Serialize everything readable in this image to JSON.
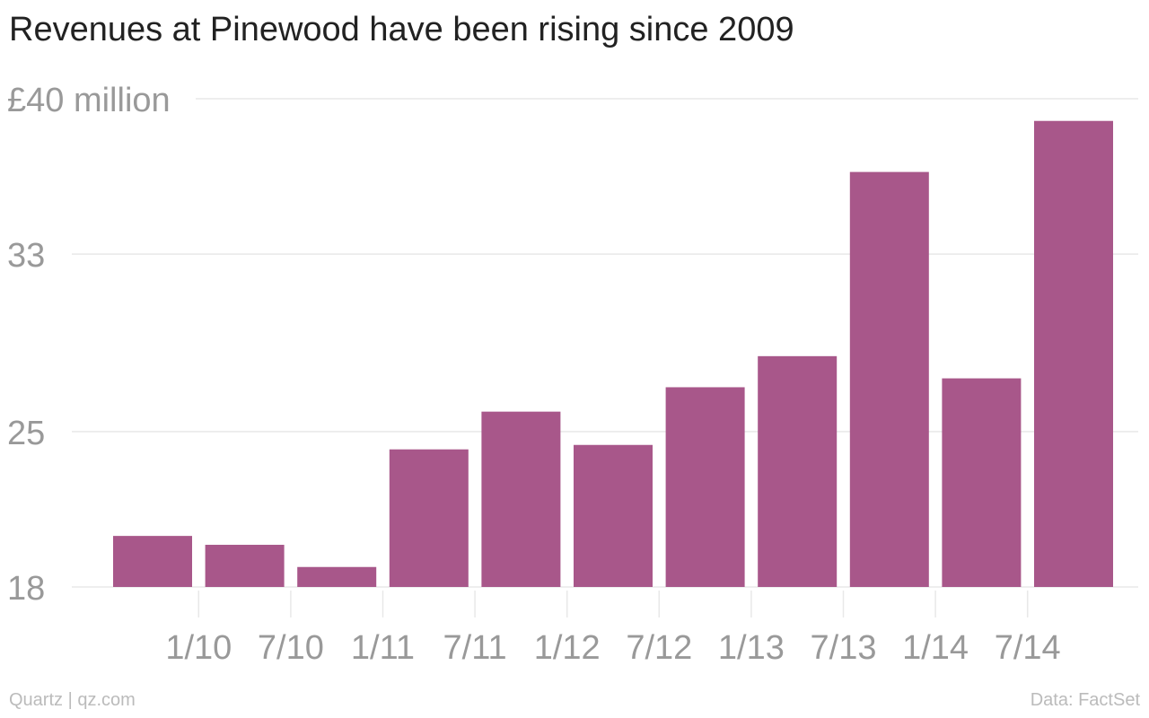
{
  "chart_data": {
    "type": "bar",
    "title": "Revenues at Pinewood have been rising since 2009",
    "xlabel": "",
    "ylabel": "",
    "y_unit_label": "£40 million",
    "ylim": [
      18,
      40
    ],
    "yticks": [
      {
        "value": 40,
        "label": "£40 million"
      },
      {
        "value": 33,
        "label": "33"
      },
      {
        "value": 25,
        "label": "25"
      },
      {
        "value": 18,
        "label": "18"
      }
    ],
    "x_tick_labels": [
      "1/10",
      "7/10",
      "1/11",
      "7/11",
      "1/12",
      "7/12",
      "1/13",
      "7/13",
      "1/14",
      "7/14"
    ],
    "values": [
      20.3,
      19.9,
      18.9,
      24.2,
      25.9,
      24.4,
      27.0,
      28.4,
      36.7,
      27.4,
      39.0
    ],
    "bar_color": "#a8578a",
    "grid": true,
    "legend": "none"
  },
  "footer": {
    "source_left": "Quartz | qz.com",
    "source_right": "Data: FactSet"
  },
  "colors": {
    "gridline": "#e8e8e8",
    "tick_text": "#999999",
    "title_text": "#222222",
    "footer_text": "#bbbbbb"
  }
}
